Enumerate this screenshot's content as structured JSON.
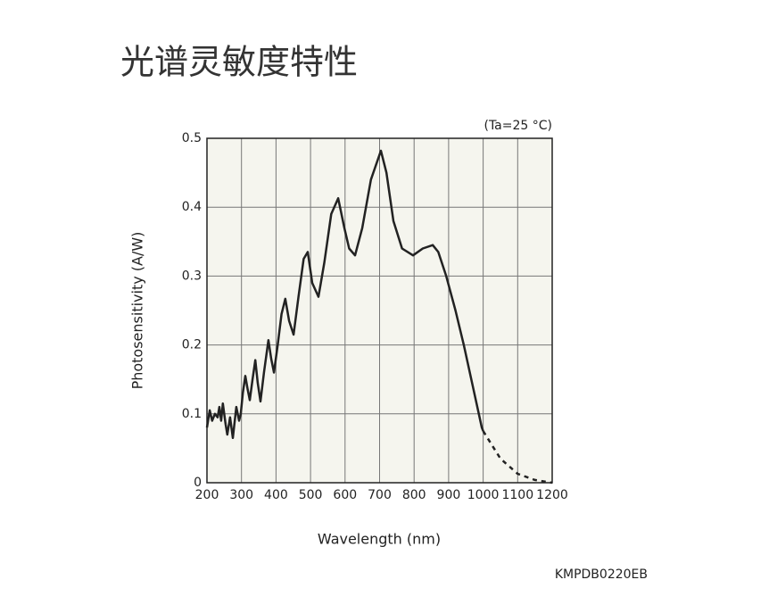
{
  "chart_data": {
    "type": "line",
    "title": "光谱灵敏度特性",
    "annotation": "(Ta=25 °C)",
    "code": "KMPDB0220EB",
    "x_label": "Wavelength (nm)",
    "y_label": "Photosensitivity (A/W)",
    "xlim": [
      200,
      1200
    ],
    "ylim": [
      0,
      0.5
    ],
    "xticks": [
      200,
      300,
      400,
      500,
      600,
      700,
      800,
      900,
      1000,
      1100,
      1200
    ],
    "yticks": [
      0,
      0.1,
      0.2,
      0.3,
      0.4,
      0.5
    ],
    "grid": true,
    "color": "#222222",
    "background": "#f5f5ee",
    "dashed_from_x": 1000,
    "x": [
      200,
      208,
      215,
      223,
      231,
      236,
      241,
      246,
      254,
      259,
      267,
      275,
      285,
      293,
      298,
      304,
      311,
      318,
      324,
      332,
      340,
      347,
      355,
      365,
      378,
      386,
      394,
      405,
      416,
      427,
      438,
      451,
      465,
      480,
      492,
      505,
      523,
      540,
      560,
      580,
      598,
      612,
      629,
      650,
      675,
      704,
      720,
      740,
      765,
      797,
      825,
      854,
      870,
      893,
      920,
      944,
      970,
      996,
      1000,
      1050,
      1100,
      1150,
      1200
    ],
    "values": [
      0.08,
      0.105,
      0.09,
      0.1,
      0.095,
      0.11,
      0.09,
      0.115,
      0.085,
      0.07,
      0.095,
      0.065,
      0.11,
      0.09,
      0.1,
      0.13,
      0.155,
      0.135,
      0.12,
      0.15,
      0.178,
      0.145,
      0.118,
      0.16,
      0.207,
      0.18,
      0.16,
      0.2,
      0.245,
      0.267,
      0.235,
      0.215,
      0.27,
      0.325,
      0.335,
      0.29,
      0.27,
      0.32,
      0.39,
      0.413,
      0.37,
      0.34,
      0.33,
      0.37,
      0.44,
      0.482,
      0.45,
      0.38,
      0.34,
      0.33,
      0.34,
      0.345,
      0.335,
      0.3,
      0.25,
      0.2,
      0.14,
      0.08,
      0.075,
      0.035,
      0.013,
      0.004,
      0
    ]
  }
}
